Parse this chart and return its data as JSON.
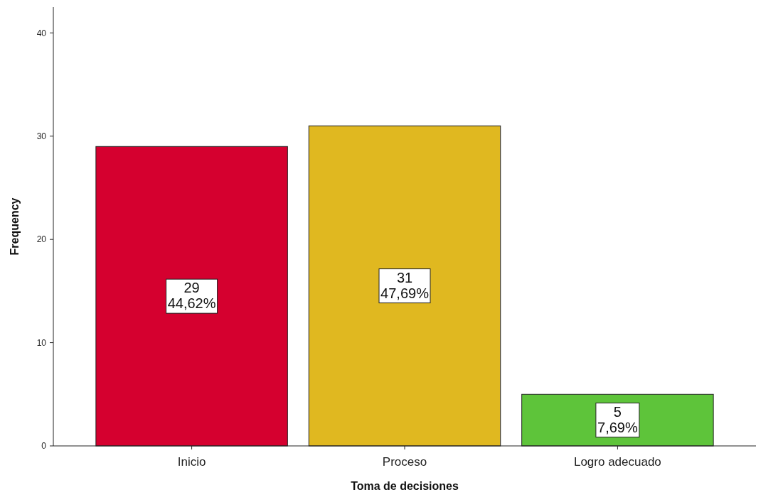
{
  "chart_data": {
    "type": "bar",
    "xlabel": "Toma de decisiones",
    "ylabel": "Frequency",
    "categories": [
      "Inicio",
      "Proceso",
      "Logro adecuado"
    ],
    "values": [
      29,
      31,
      5
    ],
    "colors": [
      "#d5002f",
      "#e0b820",
      "#5ec43a"
    ],
    "value_labels": [
      "29\n44,62%",
      "31\n47,69%",
      "5\n7,69%"
    ],
    "ylim": [
      0,
      42.5
    ],
    "yticks": [
      0,
      10,
      20,
      30,
      40
    ],
    "grid": false
  }
}
